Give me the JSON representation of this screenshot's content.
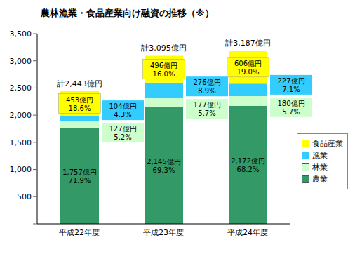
{
  "chart_data": {
    "type": "bar",
    "title": "農林漁業・食品産業向け融資の推移（※）",
    "categories": [
      "平成22年度",
      "平成23年度",
      "平成24年度"
    ],
    "stacked": true,
    "data_labels": true,
    "grid": false,
    "legend": "right",
    "ylim": [
      0,
      3500
    ],
    "yticks": [
      {
        "value": 0,
        "label": "-"
      },
      500,
      {
        "value": 1000,
        "label": "1,000"
      },
      {
        "value": 1500,
        "label": "1,500"
      },
      {
        "value": 2000,
        "label": "2,000"
      },
      {
        "value": 2500,
        "label": "2,500"
      },
      {
        "value": 3000,
        "label": "3,000"
      },
      {
        "value": 3500,
        "label": "3,500"
      }
    ],
    "total_labels": [
      "計2,443億円",
      "計3,095億円",
      "計3,187億円"
    ],
    "series": [
      {
        "name": "農業",
        "color": "#339966",
        "values": [
          1757,
          2145,
          2172
        ],
        "value_labels": [
          "1,757億円",
          "2,145億円",
          "2,172億円"
        ],
        "percent_labels": [
          "71.9%",
          "69.3%",
          "68.2%"
        ]
      },
      {
        "name": "林業",
        "color": "#CCFFCC",
        "values": [
          127,
          177,
          180
        ],
        "value_labels": [
          "127億円",
          "177億円",
          "180億円"
        ],
        "percent_labels": [
          "5.2%",
          "5.7%",
          "5.7%"
        ]
      },
      {
        "name": "漁業",
        "color": "#33CCFF",
        "values": [
          104,
          276,
          227
        ],
        "value_labels": [
          "104億円",
          "276億円",
          "227億円"
        ],
        "percent_labels": [
          "4.3%",
          "8.9%",
          "7.1%"
        ]
      },
      {
        "name": "食品産業",
        "color": "#FFFF00",
        "values": [
          453,
          496,
          606
        ],
        "value_labels": [
          "453億円",
          "496億円",
          "606億円"
        ],
        "percent_labels": [
          "18.6%",
          "16.0%",
          "19.0%"
        ]
      }
    ]
  }
}
